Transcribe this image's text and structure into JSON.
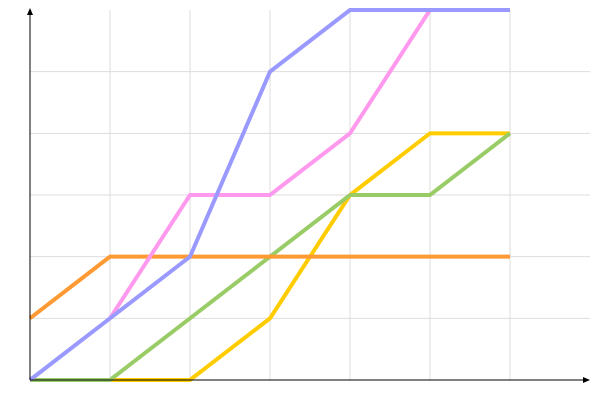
{
  "chart_data": {
    "type": "line",
    "title": "",
    "xlabel": "",
    "ylabel": "",
    "x": [
      0,
      1,
      2,
      3,
      4,
      5,
      6
    ],
    "xlim": [
      0,
      7
    ],
    "ylim": [
      0,
      6
    ],
    "grid": true,
    "legend": "none",
    "series": [
      {
        "color": "#ffcc00",
        "values": [
          0,
          0,
          0,
          1,
          3,
          4,
          4
        ]
      },
      {
        "color": "#99cc66",
        "values": [
          0,
          0,
          1,
          2,
          3,
          3,
          4
        ]
      },
      {
        "color": "#ff9933",
        "values": [
          1,
          2,
          2,
          2,
          2,
          2,
          2
        ]
      },
      {
        "color": "#ff99ee",
        "values": [
          null,
          1,
          3,
          3,
          4,
          6,
          null
        ]
      },
      {
        "color": "#9999ff",
        "values": [
          0,
          1,
          2,
          5,
          6,
          6,
          6
        ]
      }
    ]
  }
}
